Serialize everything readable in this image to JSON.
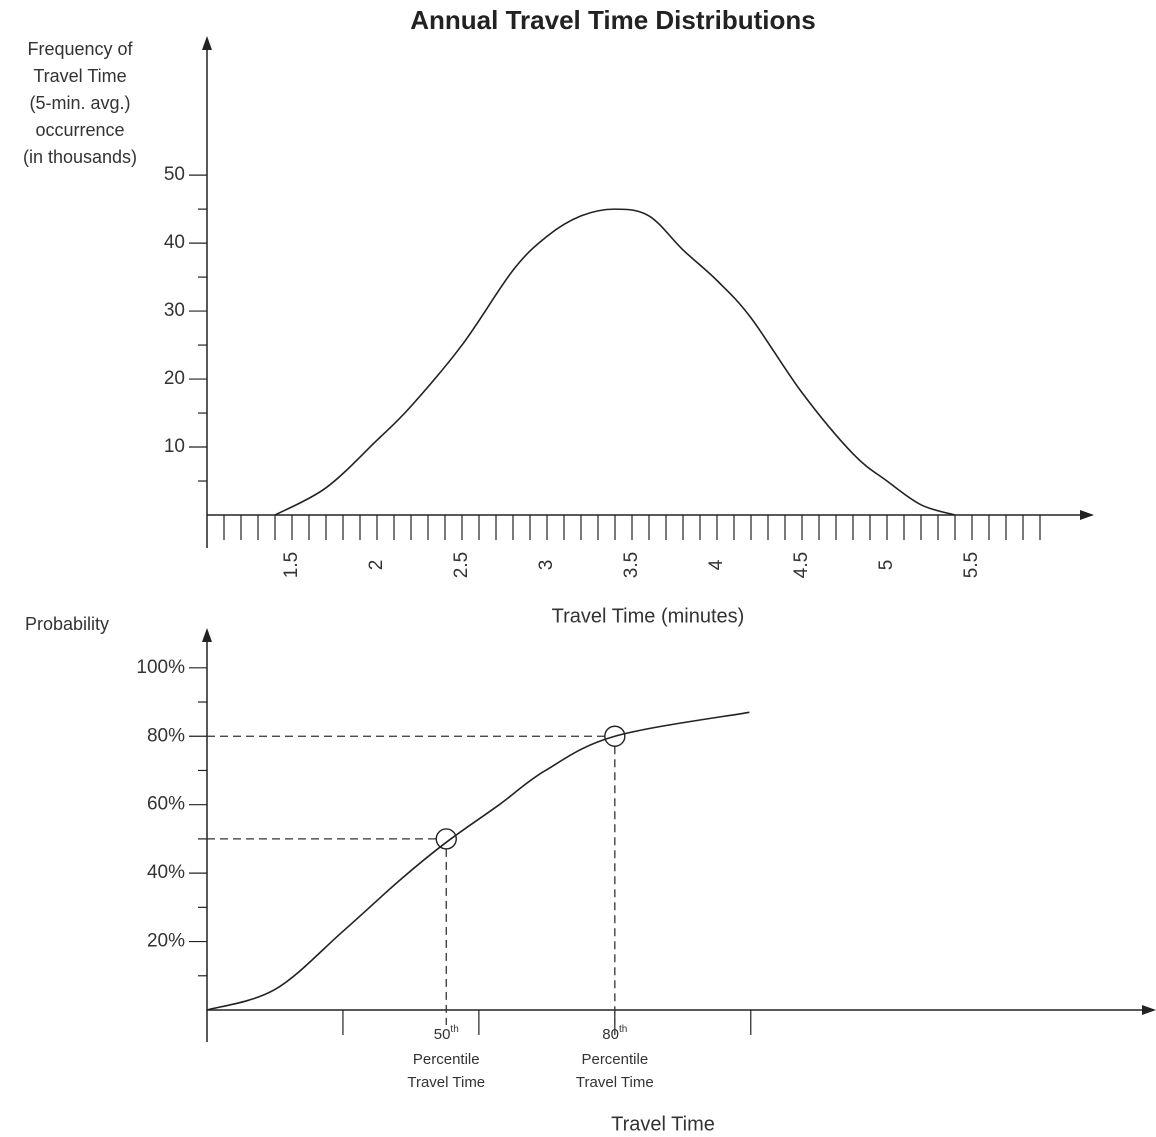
{
  "chart_data": [
    {
      "type": "line",
      "title": "Annual Travel Time Distributions",
      "ylabel": [
        "Frequency of",
        "Travel Time",
        "(5-min. avg.)",
        "occurrence",
        "(in thousands)"
      ],
      "xlabel": "Travel Time (minutes)",
      "x": [
        1.4,
        1.7,
        2.0,
        2.2,
        2.5,
        2.8,
        3.0,
        3.2,
        3.4,
        3.6,
        3.8,
        4.0,
        4.2,
        4.5,
        4.8,
        5.0,
        5.2,
        5.4
      ],
      "series": [
        {
          "color": "#222222",
          "values": [
            0,
            4,
            11,
            16,
            25,
            36,
            41,
            44,
            45,
            44,
            39,
            34.5,
            29,
            18,
            9,
            5,
            1.5,
            0
          ]
        }
      ],
      "xlim": [
        1.0,
        6.2
      ],
      "ylim": [
        0,
        69
      ],
      "xticks": [
        1.5,
        2.0,
        2.5,
        3.0,
        3.5,
        4.0,
        4.5,
        5.0,
        5.5
      ],
      "xminorticks": [
        1.1,
        1.2,
        1.3,
        1.4,
        1.6,
        1.7,
        1.8,
        1.9,
        2.1,
        2.2,
        2.3,
        2.4,
        2.6,
        2.7,
        2.8,
        2.9,
        3.1,
        3.2,
        3.3,
        3.4,
        3.6,
        3.7,
        3.8,
        3.9,
        4.1,
        4.2,
        4.3,
        4.4,
        4.6,
        4.7,
        4.8,
        4.9,
        5.1,
        5.2,
        5.3,
        5.4,
        5.6,
        5.7,
        5.8,
        5.9
      ],
      "yticks": [
        10,
        20,
        30,
        40,
        50
      ],
      "yminorticks": [
        5,
        15,
        25,
        35,
        45
      ]
    },
    {
      "type": "line",
      "ylabel": [
        "Probability"
      ],
      "xlabel": "Travel Time",
      "x": [
        0,
        0.5,
        1.0,
        1.42,
        1.76,
        2.15,
        2.49,
        3.0,
        3.99
      ],
      "series": [
        {
          "color": "#222222",
          "values": [
            0,
            6,
            23,
            38,
            49,
            60,
            70,
            80,
            87
          ]
        }
      ],
      "xlim": [
        0,
        6.9
      ],
      "ylim": [
        0,
        109
      ],
      "xtickmarks": [
        1,
        2,
        3,
        4
      ],
      "yticks": [
        {
          "value": 20,
          "label": "20%"
        },
        {
          "value": 40,
          "label": "40%"
        },
        {
          "value": 60,
          "label": "60%"
        },
        {
          "value": 80,
          "label": "80%"
        },
        {
          "value": 100,
          "label": "100%"
        }
      ],
      "yminorticks": [
        10,
        30,
        50,
        70,
        90
      ],
      "annotations": [
        {
          "x": 1.76,
          "y": 50,
          "number": "50",
          "suffix": "th",
          "text": [
            "Percentile",
            "Travel Time"
          ]
        },
        {
          "x": 3.0,
          "y": 80,
          "number": "80",
          "suffix": "th",
          "text": [
            "Percentile",
            "Travel Time"
          ]
        }
      ]
    }
  ]
}
